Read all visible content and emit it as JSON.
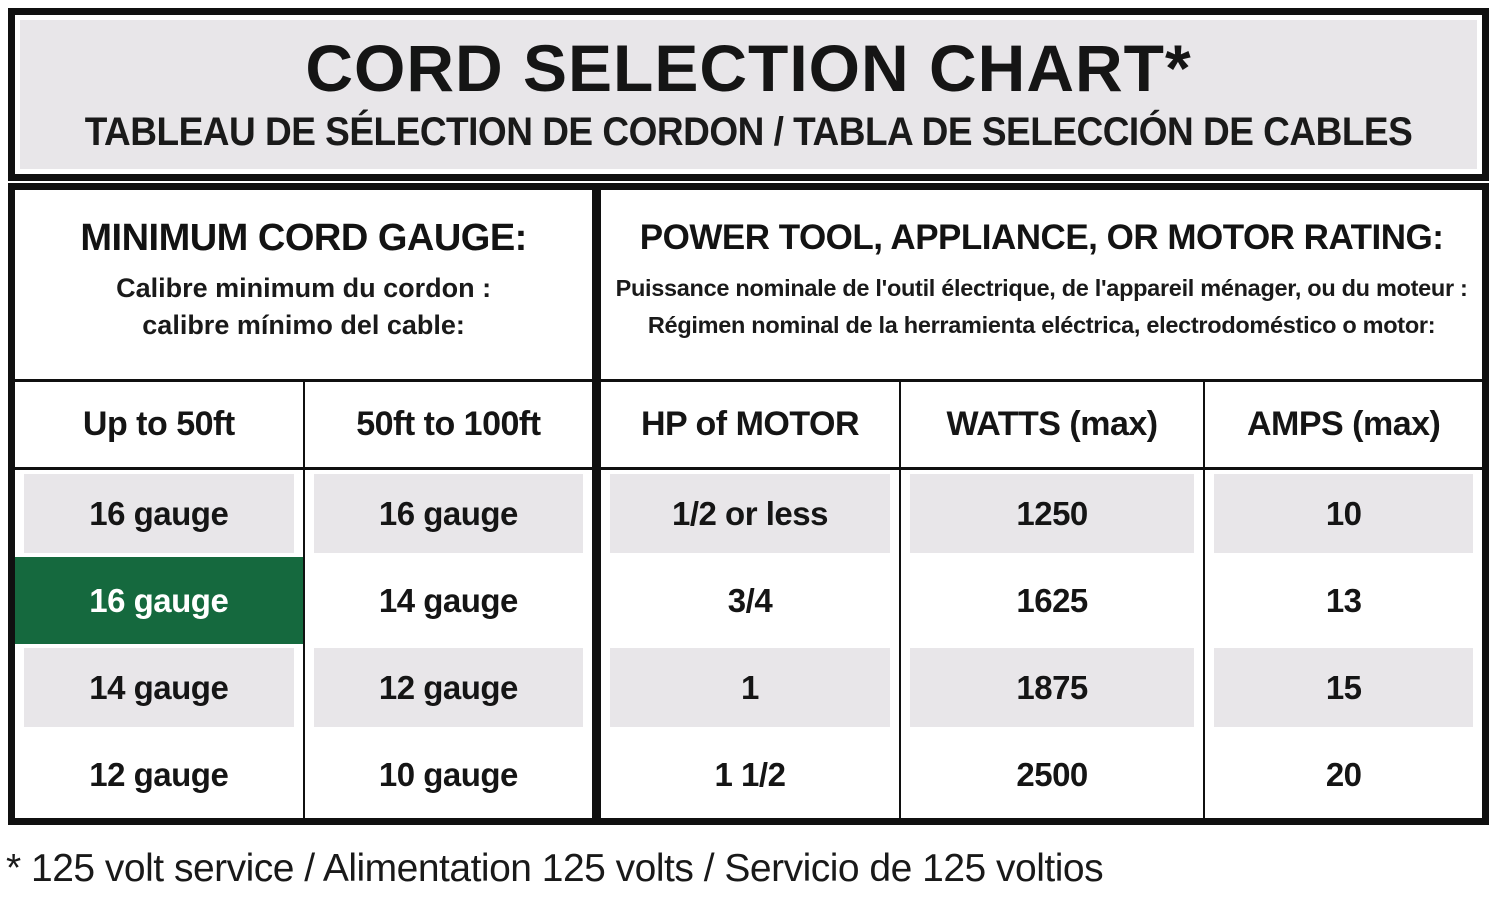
{
  "title": {
    "main": "CORD SELECTION CHART*",
    "sub": "TABLEAU DE SÉLECTION DE CORDON / TABLA DE SELECCIÓN DE CABLES"
  },
  "sections": {
    "left": {
      "heading": "MINIMUM CORD GAUGE:",
      "sub_fr": "Calibre minimum du cordon :",
      "sub_es": "calibre mínimo del cable:"
    },
    "right": {
      "heading": "POWER TOOL, APPLIANCE, OR MOTOR RATING:",
      "sub_fr": "Puissance nominale de l'outil électrique, de l'appareil ménager, ou du moteur :",
      "sub_es": "Régimen nominal de la herramienta eléctrica, electrodoméstico o motor:"
    }
  },
  "chart_data": {
    "type": "table",
    "columns": [
      "Up to 50ft",
      "50ft to 100ft",
      "HP of MOTOR",
      "WATTS (max)",
      "AMPS (max)"
    ],
    "rows": [
      [
        "16 gauge",
        "16 gauge",
        "1/2 or less",
        "1250",
        "10"
      ],
      [
        "16 gauge",
        "14 gauge",
        "3/4",
        "1625",
        "13"
      ],
      [
        "14 gauge",
        "12 gauge",
        "1",
        "1875",
        "15"
      ],
      [
        "12 gauge",
        "10 gauge",
        "1 1/2",
        "2500",
        "20"
      ]
    ],
    "highlighted_cell": {
      "row": 1,
      "col": 0,
      "value": "16 gauge",
      "color": "#15693e"
    },
    "shaded_rows": [
      0,
      2
    ]
  },
  "footnote": "* 125 volt service / Alimentation 125 volts / Servicio de 125 voltios",
  "colors": {
    "border": "#101010",
    "panel_gray": "#e8e6e9",
    "row_shade": "#e8e6e9",
    "highlight_green": "#15693e",
    "highlight_text": "#ffffff"
  }
}
